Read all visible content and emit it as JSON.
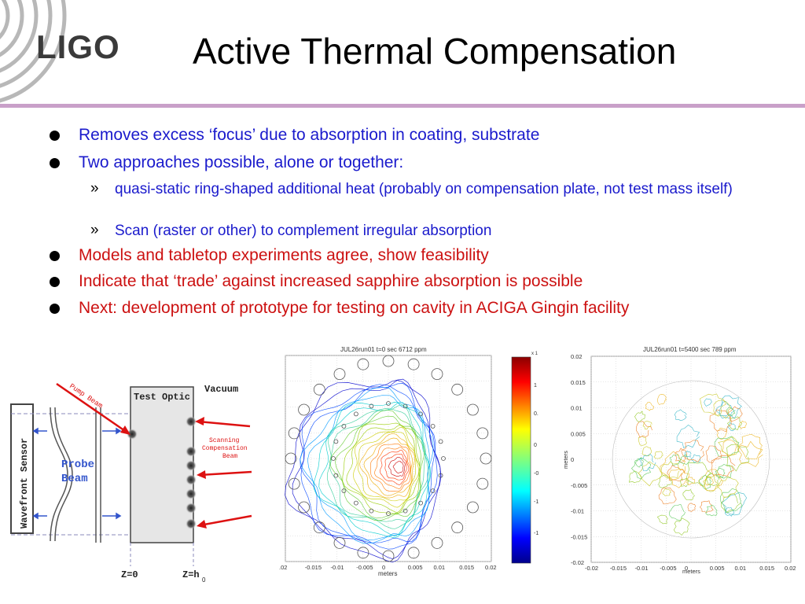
{
  "slide": {
    "logo": "LIGO",
    "title": "Active Thermal Compensation"
  },
  "bullets": [
    {
      "text": "Removes excess ‘focus’ due to absorption in coating, substrate",
      "color": "#1a1acc",
      "level": 1
    },
    {
      "text": "Two approaches possible, alone or together:",
      "color": "#1a1acc",
      "level": 1
    },
    {
      "text": "quasi-static ring-shaped additional heat (probably on compensation plate, not test mass itself)",
      "color": "#1a1acc",
      "level": 2,
      "marker": "»"
    },
    {
      "text": "Scan (raster or other) to complement irregular absorption",
      "color": "#1a1acc",
      "level": 2,
      "marker": "»"
    },
    {
      "text": "Models and tabletop experiments agree, show feasibility",
      "color": "#cc1111",
      "level": 1
    },
    {
      "text": "Indicate that ‘trade’ against increased sapphire absorption is possible",
      "color": "#cc1111",
      "level": 1
    },
    {
      "text": "Next: development of prototype for testing on cavity in ACIGA Gingin facility",
      "color": "#cc1111",
      "level": 1
    }
  ],
  "diagram": {
    "sensor": "Wavefront Sensor",
    "probe1": "Probe",
    "probe2": "Beam",
    "optic": "Test Optic",
    "vacuum": "Vacuum",
    "pump": "Pump Beam",
    "scan1": "Scanning",
    "scan2": "Compensation",
    "scan3": "Beam",
    "z0": "Z=0",
    "zh": "Z=h",
    "zh_sub": "0"
  },
  "plot1": {
    "title": "JUL26run01   t=0 sec   6712 ppm",
    "xlabel": "meters",
    "xticks": [
      ".02",
      "-0.015",
      "-0.01",
      "-0.005",
      "0",
      "0.005",
      "0.01",
      "0.015",
      "0.02"
    ]
  },
  "colorbar": {
    "top": "x 1",
    "ticks": [
      "1",
      "0.",
      "0",
      "-0",
      "-1",
      "-1"
    ]
  },
  "plot2": {
    "title": "JUL26run01   t=5400 sec   789 ppm",
    "xlabel": "meters",
    "ylabel": "meters",
    "xticks": [
      "-0.02",
      "-0.015",
      "-0.01",
      "-0.005",
      "0",
      "0.005",
      "0.01",
      "0.015",
      "0.02"
    ],
    "yticks": [
      "0.02",
      "0.015",
      "0.01",
      "0.005",
      "0",
      "-0.005",
      "-0.01",
      "-0.015",
      "-0.02"
    ]
  }
}
